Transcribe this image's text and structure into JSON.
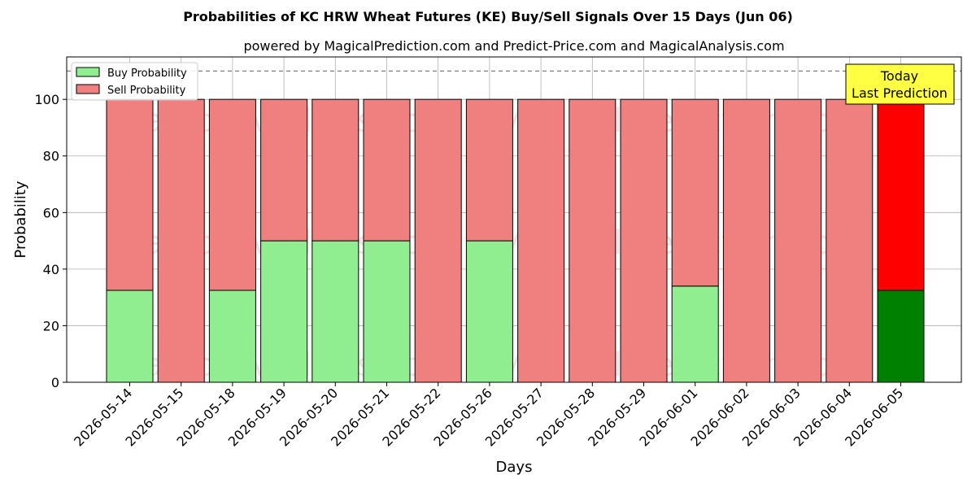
{
  "chart_data": {
    "type": "bar",
    "stacked": true,
    "title": "Probabilities of KC HRW Wheat Futures (KE) Buy/Sell Signals Over 15 Days (Jun 06)",
    "subtitle": "powered by MagicalPrediction.com and Predict-Price.com and MagicalAnalysis.com",
    "xlabel": "Days",
    "ylabel": "Probability",
    "ylim": [
      0,
      115
    ],
    "yticks": [
      0,
      20,
      40,
      60,
      80,
      100
    ],
    "grid": true,
    "legend_position": "top-left",
    "categories": [
      "2026-05-14",
      "2026-05-15",
      "2026-05-18",
      "2026-05-19",
      "2026-05-20",
      "2026-05-21",
      "2026-05-22",
      "2026-05-26",
      "2026-05-27",
      "2026-05-28",
      "2026-05-29",
      "2026-06-01",
      "2026-06-02",
      "2026-06-03",
      "2026-06-04",
      "2026-06-05"
    ],
    "series": [
      {
        "name": "Buy Probability",
        "values": [
          32.5,
          0,
          32.5,
          50,
          50,
          50,
          0,
          50,
          0,
          0,
          0,
          34,
          0,
          0,
          0,
          32.5
        ],
        "color": "#90ee90",
        "highlight_color": "#008000"
      },
      {
        "name": "Sell Probability",
        "values": [
          67.5,
          100,
          67.5,
          50,
          50,
          50,
          100,
          50,
          100,
          100,
          100,
          66,
          100,
          100,
          100,
          67.5
        ],
        "color": "#f08080",
        "highlight_color": "#ff0000"
      }
    ],
    "highlight_index": 15,
    "reference_line": {
      "y": 110,
      "style": "dashed",
      "color": "#808080"
    },
    "annotation": {
      "lines": [
        "Today",
        "Last Prediction"
      ],
      "background": "#ffff44"
    },
    "watermarks": [
      "MagicalAnalysis.com",
      "MagicalPrediction.com"
    ]
  }
}
